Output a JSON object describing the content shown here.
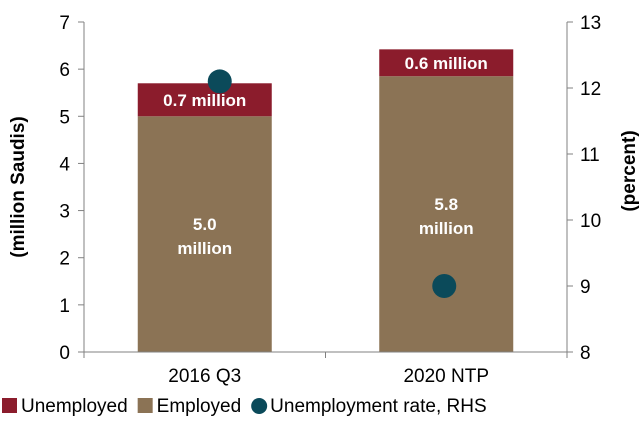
{
  "chart_data": {
    "type": "bar",
    "stacked": true,
    "categories": [
      "2016 Q3",
      "2020 NTP"
    ],
    "series": [
      {
        "name": "Employed",
        "values": [
          5.0,
          5.85
        ],
        "labels": [
          "5.0 million",
          "5.8 million"
        ],
        "color": "#8b7355"
      },
      {
        "name": "Unemployed",
        "values": [
          0.7,
          0.57
        ],
        "labels": [
          "0.7 million",
          "0.6 million"
        ],
        "color": "#8b1c2c"
      },
      {
        "name": "Unemployment rate, RHS",
        "type": "scatter",
        "axis": "right",
        "values": [
          12.1,
          9.0
        ],
        "color": "#0b4a5a"
      }
    ],
    "yleft": {
      "label": "(million Saudis)",
      "lim": [
        0,
        7
      ],
      "ticks": [
        0,
        1,
        2,
        3,
        4,
        5,
        6,
        7
      ]
    },
    "yright": {
      "label": "(percent)",
      "lim": [
        8,
        13
      ],
      "ticks": [
        8,
        9,
        10,
        11,
        12,
        13
      ]
    },
    "legend": {
      "placement": "bottom",
      "entries": [
        {
          "label": "Unemployed",
          "marker": "square",
          "color": "#8b1c2c"
        },
        {
          "label": "Employed",
          "marker": "square",
          "color": "#8b7355"
        },
        {
          "label": "Unemployment rate, RHS",
          "marker": "circle",
          "color": "#0b4a5a"
        }
      ]
    },
    "grid": false
  }
}
